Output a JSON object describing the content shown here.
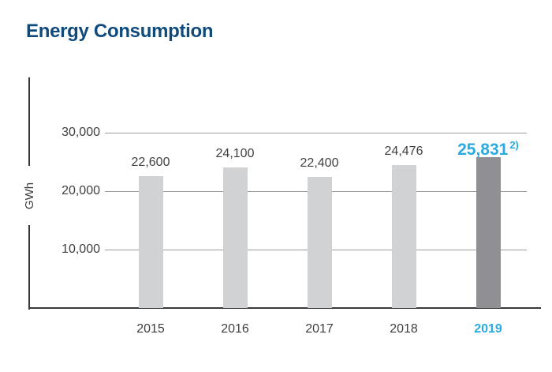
{
  "page": {
    "title": "Energy Consumption"
  },
  "colors": {
    "title_navy": "#0f4a7c",
    "accent_blue": "#29abe2",
    "bar_gray": "#d1d2d4",
    "bar_highlight_gray": "#909094",
    "grid_gray": "#9b9b9b",
    "axis_dark": "#3a3a3d",
    "text_dark": "#3f3f41"
  },
  "chart_data": {
    "type": "bar",
    "title": "Energy Consumption",
    "xlabel": "",
    "ylabel": "GWh",
    "categories": [
      "2015",
      "2016",
      "2017",
      "2018",
      "2019"
    ],
    "values": [
      22600,
      24100,
      22400,
      24476,
      25831
    ],
    "value_labels": [
      "22,600",
      "24,100",
      "22,400",
      "24,476",
      "25,831"
    ],
    "highlight": {
      "index": 4,
      "category": "2019",
      "value": 25831,
      "value_label": "25,831",
      "footnote_marker": "2)"
    },
    "yticks": [
      {
        "value": 10000,
        "label": "10,000"
      },
      {
        "value": 20000,
        "label": "20,000"
      },
      {
        "value": 30000,
        "label": "30,000"
      }
    ],
    "ylim": [
      0,
      39000
    ],
    "grid": true,
    "legend": false
  }
}
